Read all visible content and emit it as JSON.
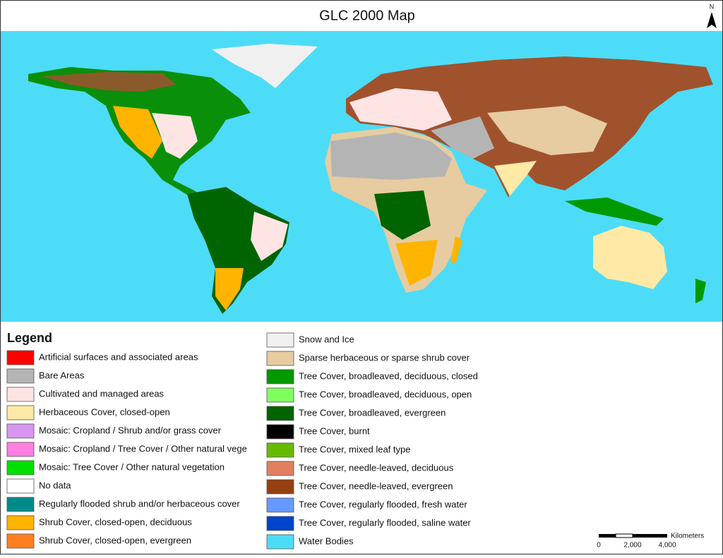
{
  "title": "GLC 2000 Map",
  "north_label": "N",
  "legend": {
    "title": "Legend",
    "items": [
      {
        "label": "Artificial surfaces and associated areas",
        "color": "#ff0000"
      },
      {
        "label": "Bare Areas",
        "color": "#b4b4b4"
      },
      {
        "label": "Cultivated and managed areas",
        "color": "#ffe4e4"
      },
      {
        "label": "Herbaceous Cover, closed-open",
        "color": "#ffe9a6"
      },
      {
        "label": "Mosaic: Cropland / Shrub and/or grass cover",
        "color": "#d896f0"
      },
      {
        "label": "Mosaic: Cropland / Tree Cover / Other natural vege",
        "color": "#ff80e0"
      },
      {
        "label": "Mosaic: Tree Cover / Other natural vegetation",
        "color": "#00e000"
      },
      {
        "label": "No data",
        "color": "#ffffff"
      },
      {
        "label": "Regularly flooded shrub and/or herbaceous cover",
        "color": "#008b8b"
      },
      {
        "label": "Shrub Cover, closed-open, deciduous",
        "color": "#ffb400"
      },
      {
        "label": "Shrub Cover, closed-open, evergreen",
        "color": "#ff7f20"
      },
      {
        "label": "Snow and Ice",
        "color": "#f0f0f0"
      },
      {
        "label": "Sparse herbaceous or sparse shrub cover",
        "color": "#e6cca0"
      },
      {
        "label": "Tree Cover, broadleaved, deciduous, closed",
        "color": "#009900"
      },
      {
        "label": "Tree Cover, broadleaved, deciduous, open",
        "color": "#80ff60"
      },
      {
        "label": "Tree Cover, broadleaved, evergreen",
        "color": "#006400"
      },
      {
        "label": "Tree Cover, burnt",
        "color": "#000000"
      },
      {
        "label": "Tree Cover, mixed leaf type",
        "color": "#66bb00"
      },
      {
        "label": "Tree Cover, needle-leaved, deciduous",
        "color": "#e08060"
      },
      {
        "label": "Tree Cover, needle-leaved, evergreen",
        "color": "#964010"
      },
      {
        "label": "Tree Cover, regularly flooded, fresh water",
        "color": "#6699ff"
      },
      {
        "label": "Tree Cover, regularly flooded, saline water",
        "color": "#0044cc"
      },
      {
        "label": "Water Bodies",
        "color": "#4ddcf7"
      }
    ]
  },
  "scale": {
    "unit": "Kilometers",
    "labels": [
      "0",
      "2,000",
      "4,000"
    ]
  }
}
